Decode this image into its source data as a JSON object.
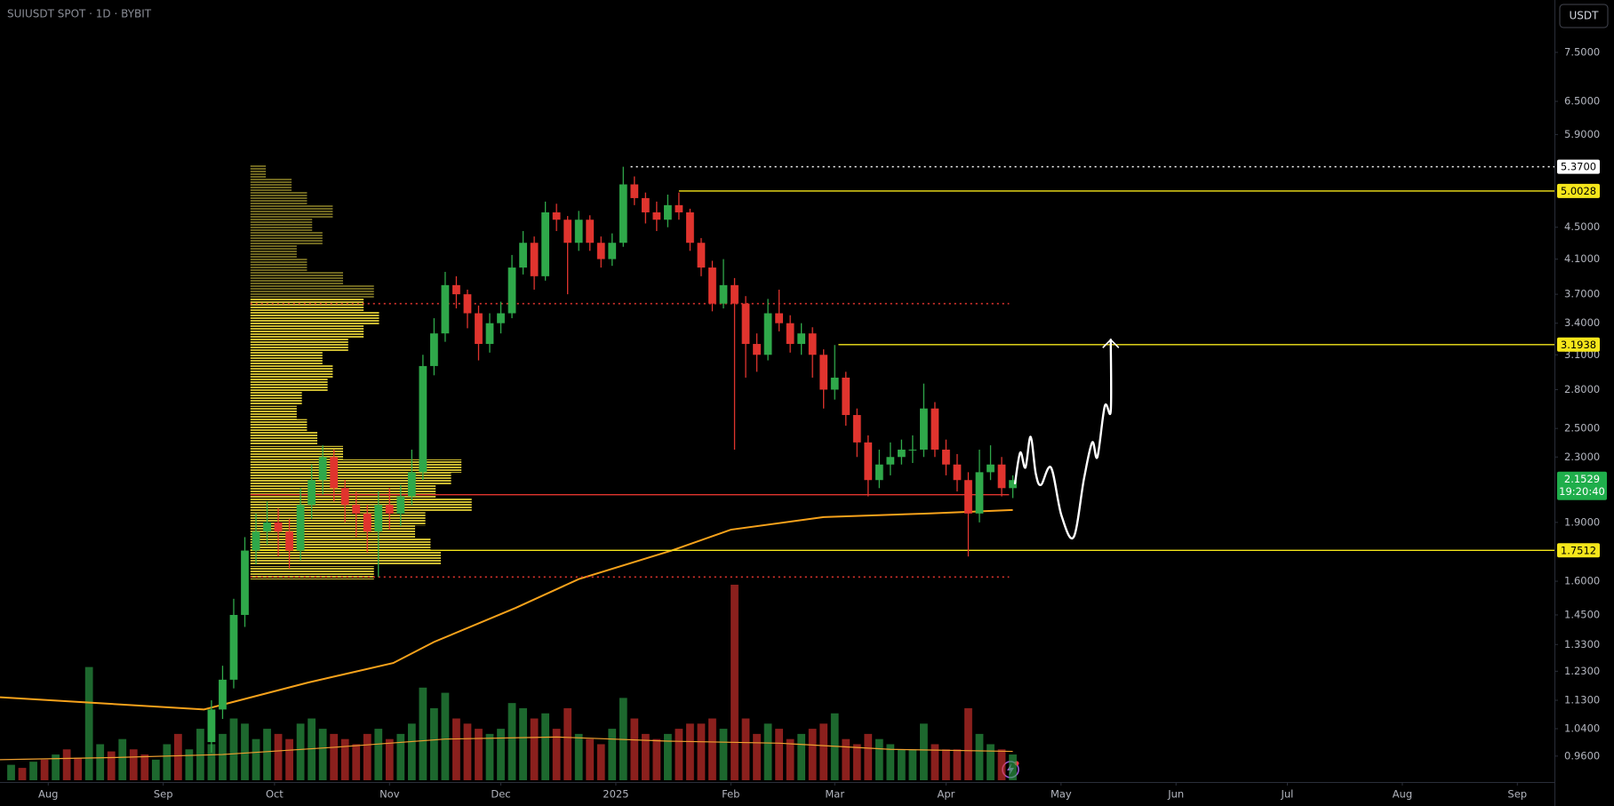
{
  "chart_data": {
    "type": "candlestick",
    "title": "SUIUSDT SPOT · 1D · BYBIT",
    "currency": "USDT",
    "log_scale": true,
    "grid": false,
    "xlim": [
      0,
      419
    ],
    "ylim": [
      0.89,
      8.74
    ],
    "xticks": [
      {
        "value": 13,
        "label": "Aug"
      },
      {
        "value": 44,
        "label": "Sep"
      },
      {
        "value": 74,
        "label": "Oct"
      },
      {
        "value": 105,
        "label": "Nov"
      },
      {
        "value": 135,
        "label": "Dec"
      },
      {
        "value": 166,
        "label": "2025"
      },
      {
        "value": 197,
        "label": "Feb"
      },
      {
        "value": 225,
        "label": "Mar"
      },
      {
        "value": 255,
        "label": "Apr"
      },
      {
        "value": 286,
        "label": "May"
      },
      {
        "value": 317,
        "label": "Jun"
      },
      {
        "value": 347,
        "label": "Jul"
      },
      {
        "value": 378,
        "label": "Aug"
      },
      {
        "value": 409,
        "label": "Sep"
      }
    ],
    "yticks": [
      {
        "value": 7.5,
        "label": "7.5000"
      },
      {
        "value": 6.5,
        "label": "6.5000"
      },
      {
        "value": 5.9,
        "label": "5.9000"
      },
      {
        "value": 4.5,
        "label": "4.5000"
      },
      {
        "value": 4.1,
        "label": "4.1000"
      },
      {
        "value": 3.7,
        "label": "3.7000"
      },
      {
        "value": 3.4,
        "label": "3.4000"
      },
      {
        "value": 3.1,
        "label": "3.1000"
      },
      {
        "value": 2.8,
        "label": "2.8000"
      },
      {
        "value": 2.5,
        "label": "2.5000"
      },
      {
        "value": 2.3,
        "label": "2.3000"
      },
      {
        "value": 1.9,
        "label": "1.9000"
      },
      {
        "value": 1.6,
        "label": "1.6000"
      },
      {
        "value": 1.45,
        "label": "1.4500"
      },
      {
        "value": 1.33,
        "label": "1.3300"
      },
      {
        "value": 1.23,
        "label": "1.2300"
      },
      {
        "value": 1.13,
        "label": "1.1300"
      },
      {
        "value": 1.04,
        "label": "1.0400"
      },
      {
        "value": 0.96,
        "label": "0.9600"
      }
    ],
    "up_color": "#2fa84a",
    "down_color": "#e0342e",
    "candles": {
      "x": [
        57,
        60,
        63,
        66,
        69,
        72,
        75,
        78,
        81,
        84,
        87,
        90,
        93,
        96,
        99,
        102,
        105,
        108,
        111,
        114,
        117,
        120,
        123,
        126,
        129,
        132,
        135,
        138,
        141,
        144,
        147,
        150,
        153,
        156,
        159,
        162,
        165,
        168,
        171,
        174,
        177,
        180,
        183,
        186,
        189,
        192,
        195,
        198,
        201,
        204,
        207,
        210,
        213,
        216,
        219,
        222,
        225,
        228,
        231,
        234,
        237,
        240,
        243,
        246,
        249,
        252,
        255,
        258,
        261,
        264,
        267,
        270,
        273
      ],
      "open": [
        1.0,
        1.1,
        1.2,
        1.45,
        1.75,
        1.85,
        1.9,
        1.85,
        1.75,
        2.0,
        2.15,
        2.3,
        2.1,
        2.0,
        1.95,
        1.85,
        2.0,
        1.95,
        2.05,
        2.2,
        3.0,
        3.3,
        3.8,
        3.7,
        3.5,
        3.2,
        3.4,
        3.5,
        4.0,
        4.3,
        3.9,
        4.7,
        4.6,
        4.3,
        4.6,
        4.3,
        4.1,
        4.3,
        5.1,
        4.9,
        4.7,
        4.6,
        4.8,
        4.7,
        4.3,
        4.0,
        3.6,
        3.8,
        3.6,
        3.2,
        3.1,
        3.5,
        3.4,
        3.2,
        3.3,
        3.1,
        2.8,
        2.9,
        2.6,
        2.4,
        2.15,
        2.25,
        2.3,
        2.35,
        2.35,
        2.65,
        2.35,
        2.25,
        2.15,
        1.95,
        2.2,
        2.25,
        2.1
      ],
      "high": [
        1.13,
        1.25,
        1.52,
        1.82,
        1.95,
        2.02,
        1.98,
        1.92,
        2.1,
        2.25,
        2.38,
        2.35,
        2.15,
        2.08,
        2.0,
        2.08,
        2.1,
        2.12,
        2.35,
        3.1,
        3.45,
        3.95,
        3.9,
        3.75,
        3.58,
        3.5,
        3.62,
        4.15,
        4.45,
        4.38,
        4.85,
        4.82,
        4.65,
        4.72,
        4.66,
        4.38,
        4.42,
        5.37,
        5.22,
        4.98,
        4.85,
        4.95,
        4.98,
        4.75,
        4.36,
        4.08,
        4.1,
        3.88,
        3.68,
        3.3,
        3.65,
        3.75,
        3.48,
        3.4,
        3.36,
        3.15,
        3.19,
        2.95,
        2.65,
        2.45,
        2.35,
        2.4,
        2.42,
        2.45,
        2.85,
        2.7,
        2.42,
        2.32,
        2.2,
        2.35,
        2.38,
        2.3,
        2.18
      ],
      "low": [
        0.97,
        1.07,
        1.17,
        1.4,
        1.68,
        1.78,
        1.72,
        1.66,
        1.7,
        1.92,
        2.06,
        2.02,
        1.9,
        1.82,
        1.74,
        1.62,
        1.86,
        1.88,
        2.0,
        2.15,
        2.92,
        3.22,
        3.55,
        3.35,
        3.05,
        3.12,
        3.3,
        3.45,
        3.92,
        3.75,
        3.85,
        4.45,
        3.7,
        4.2,
        4.2,
        4.0,
        4.02,
        4.25,
        4.8,
        4.55,
        4.45,
        4.5,
        4.6,
        4.2,
        3.9,
        3.52,
        3.55,
        2.35,
        2.9,
        2.95,
        3.05,
        3.32,
        3.12,
        3.1,
        2.9,
        2.65,
        2.72,
        2.52,
        2.3,
        2.05,
        2.1,
        2.18,
        2.25,
        2.26,
        2.3,
        2.3,
        2.18,
        2.08,
        1.72,
        1.9,
        2.15,
        2.05,
        2.04
      ],
      "close": [
        1.1,
        1.2,
        1.45,
        1.75,
        1.85,
        1.9,
        1.85,
        1.75,
        2.0,
        2.15,
        2.3,
        2.1,
        2.0,
        1.95,
        1.85,
        2.0,
        1.95,
        2.05,
        2.2,
        3.0,
        3.3,
        3.8,
        3.7,
        3.5,
        3.2,
        3.4,
        3.5,
        4.0,
        4.3,
        3.9,
        4.7,
        4.6,
        4.3,
        4.6,
        4.3,
        4.1,
        4.3,
        5.1,
        4.9,
        4.7,
        4.6,
        4.8,
        4.7,
        4.3,
        4.0,
        3.6,
        3.8,
        3.6,
        3.2,
        3.1,
        3.5,
        3.4,
        3.2,
        3.3,
        3.1,
        2.8,
        2.9,
        2.6,
        2.4,
        2.15,
        2.25,
        2.3,
        2.35,
        2.35,
        2.65,
        2.35,
        2.25,
        2.15,
        1.95,
        2.2,
        2.25,
        2.1,
        2.15
      ],
      "volume": [
        35,
        45,
        60,
        55,
        40,
        50,
        45,
        40,
        55,
        60,
        50,
        45,
        40,
        35,
        45,
        50,
        40,
        45,
        55,
        90,
        70,
        85,
        60,
        55,
        50,
        45,
        50,
        75,
        70,
        60,
        65,
        50,
        70,
        45,
        40,
        35,
        50,
        80,
        60,
        45,
        40,
        45,
        50,
        55,
        55,
        60,
        50,
        190,
        60,
        45,
        55,
        50,
        40,
        45,
        50,
        55,
        65,
        40,
        35,
        45,
        40,
        35,
        30,
        30,
        55,
        35,
        30,
        30,
        70,
        45,
        35,
        30,
        25
      ]
    },
    "early_volume": {
      "x": [
        3,
        6,
        9,
        12,
        15,
        18,
        21,
        24,
        27,
        30,
        33,
        36,
        39,
        42,
        45,
        48,
        51,
        54
      ],
      "values": [
        15,
        12,
        18,
        20,
        25,
        30,
        22,
        110,
        35,
        28,
        40,
        30,
        25,
        20,
        35,
        45,
        30,
        50
      ],
      "up": [
        true,
        false,
        true,
        false,
        true,
        false,
        false,
        true,
        true,
        false,
        true,
        false,
        false,
        true,
        true,
        false,
        true,
        true
      ]
    },
    "volume_ylim": [
      0,
      200
    ],
    "volume_ma": {
      "color": "#f0a030",
      "x": [
        0,
        30,
        60,
        90,
        120,
        150,
        180,
        210,
        240,
        273
      ],
      "values": [
        20,
        22,
        25,
        32,
        40,
        42,
        38,
        36,
        30,
        28
      ]
    },
    "ma": {
      "color": "#f7a21b",
      "x": [
        0,
        55,
        83,
        106,
        117,
        139,
        156,
        181,
        197,
        222,
        250,
        273
      ],
      "values": [
        1.14,
        1.1,
        1.19,
        1.26,
        1.34,
        1.48,
        1.61,
        1.75,
        1.86,
        1.93,
        1.95,
        1.97
      ]
    },
    "volume_profile": {
      "from": 67.5,
      "color": "#6d6520",
      "value_area_color": "#c9b831",
      "prices": [
        5.3,
        5.1,
        4.9,
        4.71,
        4.53,
        4.36,
        4.19,
        4.03,
        3.88,
        3.73,
        3.59,
        3.45,
        3.32,
        3.19,
        3.07,
        2.95,
        2.84,
        2.73,
        2.62,
        2.52,
        2.43,
        2.33,
        2.24,
        2.16,
        2.08,
        2.0,
        1.92,
        1.85,
        1.78,
        1.71,
        1.64
      ],
      "values": [
        15,
        40,
        55,
        80,
        60,
        70,
        45,
        55,
        90,
        120,
        110,
        125,
        110,
        95,
        70,
        80,
        75,
        50,
        45,
        55,
        65,
        90,
        205,
        195,
        180,
        215,
        170,
        160,
        175,
        185,
        120
      ]
    },
    "levels": [
      {
        "value": 5.37,
        "label": "5.3700",
        "color": "#ffffff",
        "style": "dotted",
        "from": 170
      },
      {
        "value": 5.0028,
        "label": "5.0028",
        "color": "#f5e61b",
        "style": "solid",
        "from": 183
      },
      {
        "value": 3.1938,
        "label": "3.1938",
        "color": "#f5e61b",
        "style": "solid",
        "from": 226
      },
      {
        "value": 1.7512,
        "label": "1.7512",
        "color": "#f5e61b",
        "style": "solid",
        "from": 67.5
      },
      {
        "value": 3.6,
        "color": "#e0342e",
        "style": "dotted",
        "from": 67.5,
        "to": 272
      },
      {
        "value": 2.06,
        "color": "#e0342e",
        "style": "solid",
        "from": 67.5,
        "to": 272
      },
      {
        "value": 1.62,
        "color": "#e0342e",
        "style": "dotted",
        "from": 67.5,
        "to": 272
      }
    ],
    "projection": {
      "color": "#ffffff",
      "x": [
        273.6,
        275,
        276.4,
        277.8,
        279.2,
        280.6,
        283.3,
        286.1,
        289.4,
        292.2,
        294.4,
        295.8,
        297.8,
        299.4,
        299.4
      ],
      "values": [
        2.13,
        2.33,
        2.23,
        2.44,
        2.19,
        2.12,
        2.23,
        1.94,
        1.82,
        2.16,
        2.4,
        2.3,
        2.67,
        2.63,
        3.24
      ]
    },
    "last_price": {
      "value": 2.1529,
      "label": "2.1529",
      "countdown": "19:20:40",
      "color": "#1fae4b"
    }
  }
}
